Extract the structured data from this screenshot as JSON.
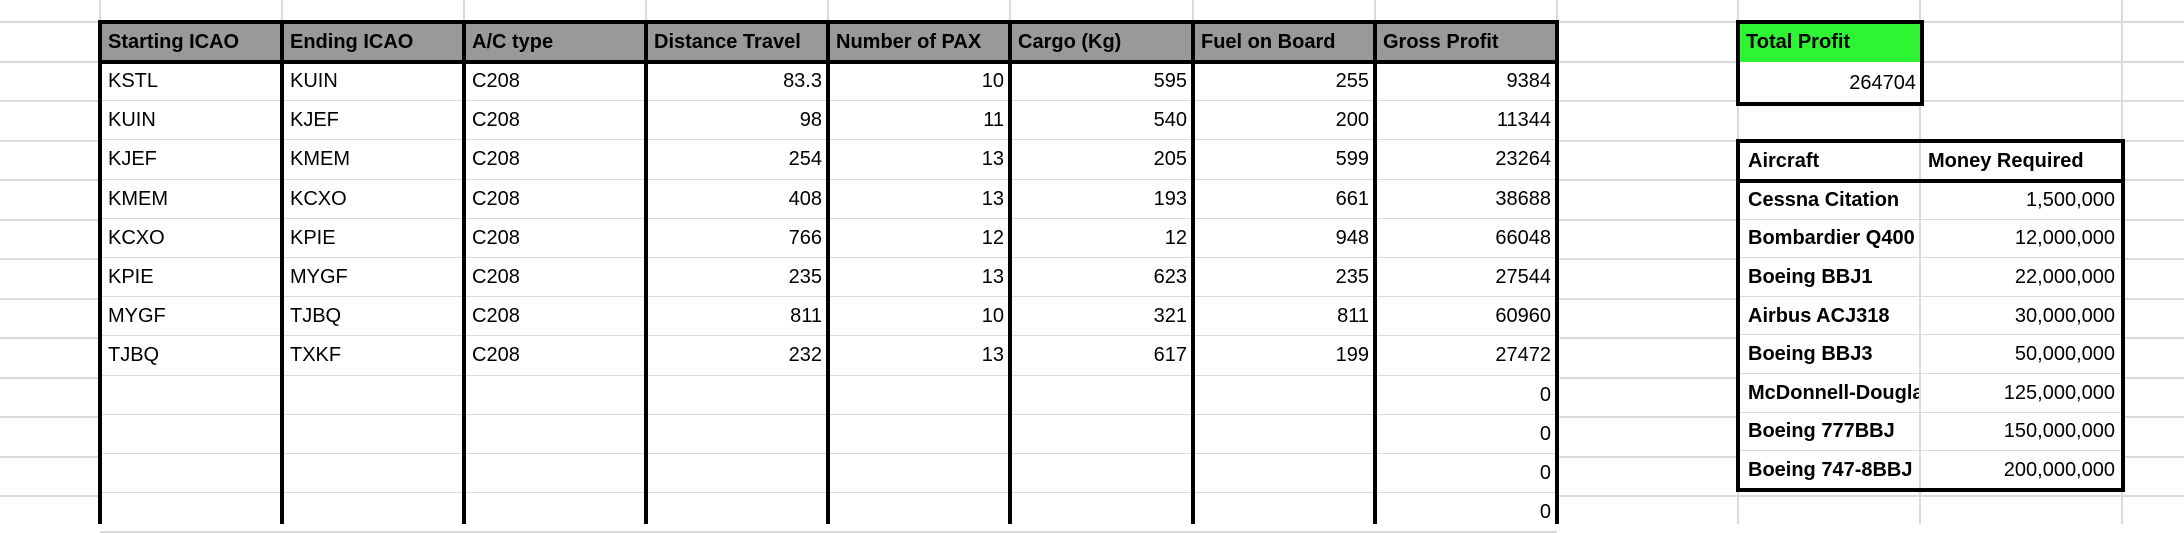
{
  "flights": {
    "headers": [
      "Starting ICAO",
      "Ending ICAO",
      "A/C type",
      "Distance Travel",
      "Number of PAX",
      "Cargo (Kg)",
      "Fuel on Board",
      "Gross Profit"
    ],
    "rows": [
      [
        "KSTL",
        "KUIN",
        "C208",
        "83.3",
        "10",
        "595",
        "255",
        "9384"
      ],
      [
        "KUIN",
        "KJEF",
        "C208",
        "98",
        "11",
        "540",
        "200",
        "11344"
      ],
      [
        "KJEF",
        "KMEM",
        "C208",
        "254",
        "13",
        "205",
        "599",
        "23264"
      ],
      [
        "KMEM",
        "KCXO",
        "C208",
        "408",
        "13",
        "193",
        "661",
        "38688"
      ],
      [
        "KCXO",
        "KPIE",
        "C208",
        "766",
        "12",
        "12",
        "948",
        "66048"
      ],
      [
        "KPIE",
        "MYGF",
        "C208",
        "235",
        "13",
        "623",
        "235",
        "27544"
      ],
      [
        "MYGF",
        "TJBQ",
        "C208",
        "811",
        "10",
        "321",
        "811",
        "60960"
      ],
      [
        "TJBQ",
        "TXKF",
        "C208",
        "232",
        "13",
        "617",
        "199",
        "27472"
      ],
      [
        "",
        "",
        "",
        "",
        "",
        "",
        "",
        "0"
      ],
      [
        "",
        "",
        "",
        "",
        "",
        "",
        "",
        "0"
      ],
      [
        "",
        "",
        "",
        "",
        "",
        "",
        "",
        "0"
      ],
      [
        "",
        "",
        "",
        "",
        "",
        "",
        "",
        "0"
      ]
    ]
  },
  "total_profit": {
    "label": "Total Profit",
    "value": "264704",
    "color": "#2ef533"
  },
  "aircraft": {
    "headers": [
      "Aircraft",
      "Money Required"
    ],
    "rows": [
      [
        "Cessna Citation",
        "1,500,000"
      ],
      [
        "Bombardier Q400",
        "12,000,000"
      ],
      [
        "Boeing BBJ1",
        "22,000,000"
      ],
      [
        "Airbus ACJ318",
        "30,000,000"
      ],
      [
        "Boeing BBJ3",
        "50,000,000"
      ],
      [
        "McDonnell-Douglas",
        "125,000,000"
      ],
      [
        "Boeing 777BBJ",
        "150,000,000"
      ],
      [
        "Boeing 747-8BBJ",
        "200,000,000"
      ]
    ]
  },
  "colors": {
    "header_gray": "#999999",
    "grid": "#dadada"
  }
}
